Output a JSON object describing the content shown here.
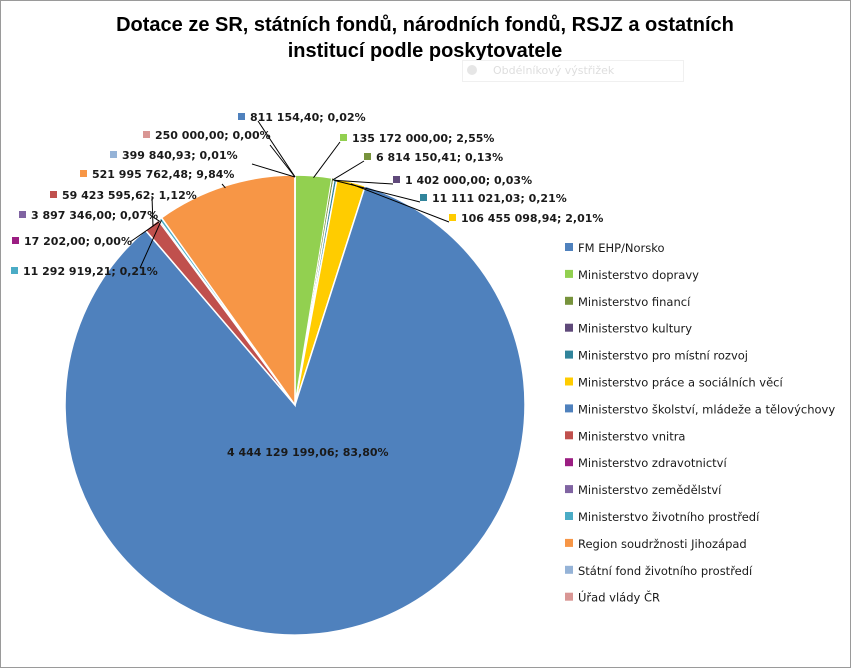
{
  "chart_data": {
    "type": "pie",
    "title_lines": [
      "Dotace ze SR, státních fondů, národních fondů, RSJZ a ostatních",
      "institucí podle poskytovatele"
    ],
    "slices": [
      {
        "name": "FM EHP/Norsko",
        "value": 811154.4,
        "label": "811 154,40; 0,02%",
        "color": "#4F81BD"
      },
      {
        "name": "Ministerstvo dopravy",
        "value": 135172000.0,
        "label": "135 172 000,00; 2,55%",
        "color": "#92D050"
      },
      {
        "name": "Ministerstvo financí",
        "value": 6814150.41,
        "label": "6 814 150,41; 0,13%",
        "color": "#77933C"
      },
      {
        "name": "Ministerstvo kultury",
        "value": 1402000.0,
        "label": "1 402 000,00; 0,03%",
        "color": "#5F497A"
      },
      {
        "name": "Ministerstvo pro místní rozvoj",
        "value": 11111021.03,
        "label": "11 111 021,03; 0,21%",
        "color": "#31849B"
      },
      {
        "name": "Ministerstvo práce a sociálních věcí",
        "value": 106455098.94,
        "label": "106 455 098,94; 2,01%",
        "color": "#FFCC00"
      },
      {
        "name": "Ministerstvo školství,  mládeže a tělovýchovy",
        "value": 4444129199.06,
        "label": "4 444 129 199,06; 83,80%",
        "color": "#4F81BD"
      },
      {
        "name": "Ministerstvo vnitra",
        "value": 59423595.62,
        "label": "59 423 595,62; 1,12%",
        "color": "#C0504D"
      },
      {
        "name": "Ministerstvo zdravotnictví",
        "value": 17202.0,
        "label": "17 202,00; 0,00%",
        "color": "#9B1E82"
      },
      {
        "name": "Ministerstvo zemědělství",
        "value": 3897346.0,
        "label": "3 897 346,00; 0,07%",
        "color": "#8064A2"
      },
      {
        "name": "Ministerstvo životního prostředí",
        "value": 11292919.21,
        "label": "11 292 919,21; 0,21%",
        "color": "#4BACC6"
      },
      {
        "name": "Region soudržnosti Jihozápad",
        "value": 521995762.48,
        "label": "521 995 762,48; 9,84%",
        "color": "#F79646"
      },
      {
        "name": "Státní fond životního prostředí",
        "value": 399840.93,
        "label": "399 840,93; 0,01%",
        "color": "#95B3D7"
      },
      {
        "name": "Úřad vlády ČR",
        "value": 250000.0,
        "label": "250 000,00; 0,00%",
        "color": "#D99694"
      }
    ],
    "legend_placement": "right"
  },
  "watermark_text": "Obdélníkový výstřižek"
}
